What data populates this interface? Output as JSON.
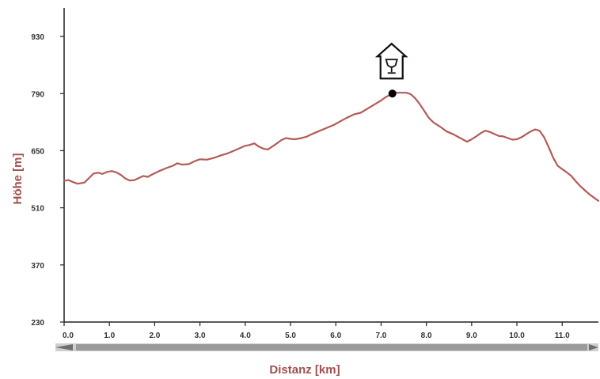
{
  "chart_data": {
    "type": "line",
    "title": "",
    "xlabel": "Distanz [km]",
    "ylabel": "Höhe [m]",
    "xlim": [
      0,
      11.8
    ],
    "ylim": [
      230,
      1000
    ],
    "x_ticks": [
      0,
      1,
      2,
      3,
      4,
      5,
      6,
      7,
      8,
      9,
      10,
      11
    ],
    "x_tick_labels": [
      "0.0",
      "1.0",
      "2.0",
      "3.0",
      "4.0",
      "5.0",
      "6.0",
      "7.0",
      "8.0",
      "9.0",
      "10.0",
      "11.0"
    ],
    "y_ticks": [
      230,
      370,
      510,
      650,
      790,
      930
    ],
    "y_tick_labels": [
      "230",
      "370",
      "510",
      "650",
      "790",
      "930"
    ],
    "grid": false,
    "series": [
      {
        "x": [
          0.0,
          0.1,
          0.2,
          0.3,
          0.45,
          0.55,
          0.65,
          0.75,
          0.85,
          0.95,
          1.05,
          1.15,
          1.25,
          1.35,
          1.45,
          1.55,
          1.65,
          1.75,
          1.85,
          1.95,
          2.1,
          2.25,
          2.4,
          2.5,
          2.6,
          2.75,
          2.9,
          3.0,
          3.15,
          3.3,
          3.45,
          3.6,
          3.75,
          3.9,
          4.0,
          4.1,
          4.2,
          4.3,
          4.4,
          4.5,
          4.65,
          4.8,
          4.9,
          5.0,
          5.1,
          5.2,
          5.35,
          5.5,
          5.65,
          5.8,
          5.95,
          6.1,
          6.25,
          6.4,
          6.55,
          6.7,
          6.85,
          7.0,
          7.1,
          7.2,
          7.3,
          7.35,
          7.45,
          7.55,
          7.65,
          7.75,
          7.85,
          7.95,
          8.05,
          8.15,
          8.3,
          8.45,
          8.6,
          8.75,
          8.9,
          9.0,
          9.1,
          9.2,
          9.3,
          9.4,
          9.5,
          9.6,
          9.7,
          9.8,
          9.9,
          10.0,
          10.1,
          10.2,
          10.3,
          10.4,
          10.5,
          10.6,
          10.7,
          10.8,
          10.9,
          11.0,
          11.1,
          11.2,
          11.3,
          11.4,
          11.5,
          11.6,
          11.7,
          11.8
        ],
        "y": [
          576,
          578,
          573,
          569,
          572,
          583,
          594,
          596,
          593,
          598,
          600,
          597,
          591,
          582,
          577,
          578,
          583,
          588,
          586,
          592,
          600,
          607,
          613,
          619,
          616,
          617,
          625,
          629,
          628,
          632,
          638,
          643,
          650,
          657,
          662,
          664,
          668,
          660,
          655,
          653,
          664,
          676,
          681,
          679,
          678,
          680,
          684,
          692,
          699,
          706,
          713,
          722,
          731,
          739,
          743,
          753,
          763,
          773,
          781,
          787,
          792,
          792,
          792,
          792,
          789,
          779,
          765,
          748,
          731,
          720,
          709,
          697,
          690,
          681,
          672,
          678,
          685,
          693,
          699,
          696,
          691,
          686,
          685,
          681,
          677,
          678,
          683,
          690,
          697,
          702,
          699,
          683,
          659,
          633,
          613,
          605,
          597,
          588,
          575,
          563,
          553,
          543,
          535,
          527
        ]
      }
    ],
    "annotations": [
      {
        "type": "point",
        "x": 7.25,
        "y": 790
      },
      {
        "type": "icon",
        "icon": "hut-with-glass-icon",
        "x": 7.25,
        "y": 790
      }
    ],
    "scrollbar": {
      "has_left_arrow": true,
      "has_right_arrow": true
    },
    "colors": {
      "line": "#b45a5a",
      "axis_title": "#a05050",
      "axis": "#222222",
      "scrollbar": "#9a9a9a",
      "marker": "#000000"
    }
  }
}
